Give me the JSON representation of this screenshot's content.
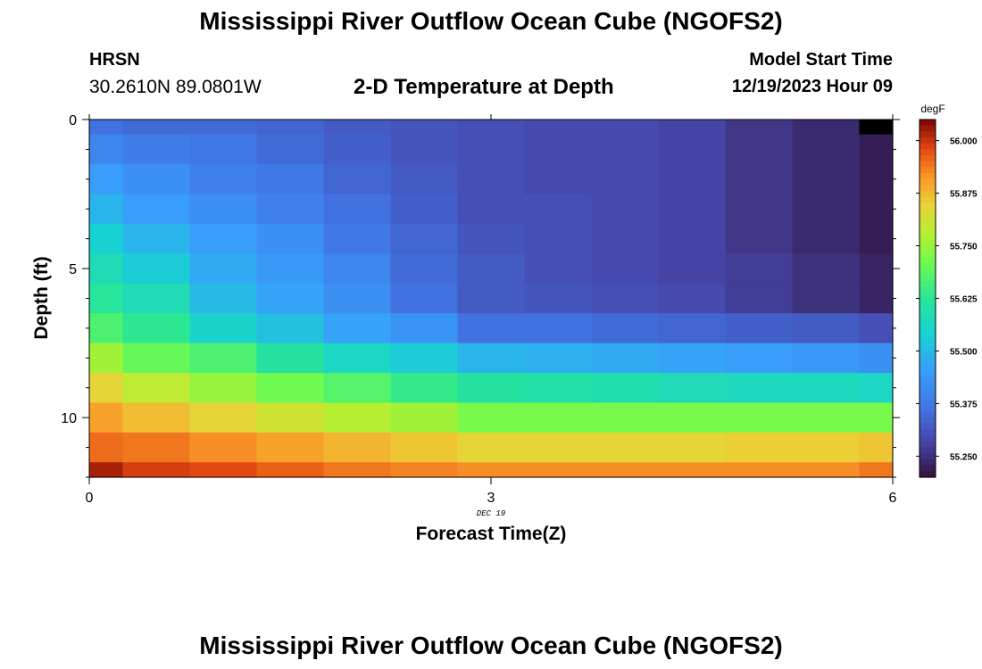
{
  "header": {
    "title": "Mississippi River Outflow Ocean Cube (NGOFS2)",
    "station_id": "HRSN",
    "coordinates": "30.2610N  89.0801W",
    "subtitle": "2-D Temperature at Depth",
    "model_start_label": "Model Start Time",
    "model_start_value": "12/19/2023 Hour 09"
  },
  "footer": {
    "title": "Mississippi River Outflow Ocean Cube (NGOFS2)"
  },
  "chart_data": {
    "type": "heatmap",
    "title": "2-D Temperature at Depth",
    "xlabel": "Forecast Time(Z)",
    "ylabel": "Depth (ft)",
    "x_date_label": "DEC 19",
    "xlim": [
      0,
      6
    ],
    "ylim": [
      0,
      12
    ],
    "y_inverted": true,
    "x_ticks": [
      0,
      3,
      6
    ],
    "y_ticks": [
      0,
      5,
      10
    ],
    "x_time_bins": [
      0,
      0.25,
      0.75,
      1.25,
      1.75,
      2.25,
      2.75,
      3.25,
      3.75,
      4.25,
      4.75,
      5.25,
      5.75,
      6
    ],
    "depth_bins": [
      0,
      0.5,
      1.5,
      2.5,
      3.5,
      4.5,
      5.5,
      6.5,
      7.5,
      8.5,
      9.5,
      10.5,
      11.5,
      12
    ],
    "temperature_degF": [
      [
        55.36,
        55.35,
        55.35,
        55.34,
        55.32,
        55.31,
        55.3,
        55.29,
        55.29,
        55.28,
        55.26,
        55.24,
        null
      ],
      [
        55.4,
        55.38,
        55.37,
        55.35,
        55.33,
        55.31,
        55.3,
        55.29,
        55.29,
        55.28,
        55.26,
        55.24,
        55.22
      ],
      [
        55.45,
        55.42,
        55.39,
        55.37,
        55.34,
        55.32,
        55.3,
        55.29,
        55.29,
        55.28,
        55.26,
        55.24,
        55.22
      ],
      [
        55.49,
        55.45,
        55.42,
        55.39,
        55.36,
        55.33,
        55.3,
        55.3,
        55.29,
        55.28,
        55.26,
        55.24,
        55.22
      ],
      [
        55.54,
        55.49,
        55.45,
        55.42,
        55.37,
        55.34,
        55.31,
        55.3,
        55.29,
        55.28,
        55.26,
        55.24,
        55.22
      ],
      [
        55.58,
        55.53,
        55.47,
        55.44,
        55.4,
        55.35,
        55.32,
        55.3,
        55.29,
        55.28,
        55.27,
        55.25,
        55.23
      ],
      [
        55.62,
        55.58,
        55.5,
        55.46,
        55.42,
        55.36,
        55.32,
        55.31,
        55.3,
        55.29,
        55.27,
        55.25,
        55.23
      ],
      [
        55.67,
        55.63,
        55.55,
        55.51,
        55.46,
        55.43,
        55.36,
        55.36,
        55.35,
        55.34,
        55.33,
        55.32,
        55.3
      ],
      [
        55.76,
        55.7,
        55.67,
        55.61,
        55.56,
        55.53,
        55.49,
        55.48,
        55.47,
        55.46,
        55.45,
        55.44,
        55.42
      ],
      [
        55.84,
        55.79,
        55.75,
        55.71,
        55.68,
        55.64,
        55.61,
        55.6,
        55.59,
        55.58,
        55.57,
        55.57,
        55.56
      ],
      [
        55.9,
        55.87,
        55.84,
        55.81,
        55.78,
        55.76,
        55.72,
        55.72,
        55.72,
        55.72,
        55.72,
        55.72,
        55.72
      ],
      [
        55.95,
        55.94,
        55.92,
        55.9,
        55.88,
        55.86,
        55.84,
        55.84,
        55.84,
        55.84,
        55.85,
        55.85,
        55.86
      ],
      [
        56.02,
        55.99,
        55.98,
        55.96,
        55.94,
        55.93,
        55.92,
        55.92,
        55.92,
        55.92,
        55.92,
        55.92,
        55.94
      ]
    ],
    "colorbar": {
      "unit": "degF",
      "min": 55.2,
      "max": 56.05,
      "ticks": [
        "56.000",
        "55.875",
        "55.750",
        "55.625",
        "55.500",
        "55.375",
        "55.250"
      ],
      "tick_values": [
        56.0,
        55.875,
        55.75,
        55.625,
        55.5,
        55.375,
        55.25
      ],
      "colormap": "turbo",
      "missing_color": "#000000"
    },
    "grid": false
  }
}
